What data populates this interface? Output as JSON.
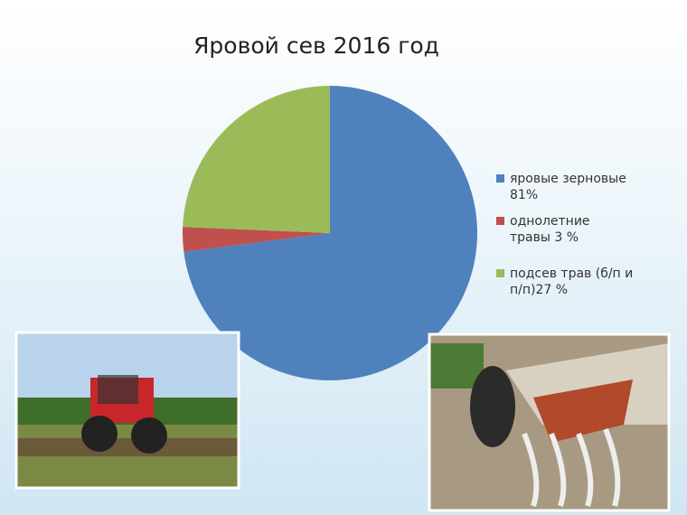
{
  "chart_data": {
    "type": "pie",
    "title": "Яровой сев 2016 год",
    "categories": [
      "яровые зерновые 81%",
      "однолетние травы 3 %",
      "подсев трав  (б/п и п/п)27 %"
    ],
    "values": [
      81,
      3,
      27
    ],
    "colors": [
      "#4f81bd",
      "#c0504d",
      "#9bbb59"
    ],
    "start_angle": 0,
    "direction": "clockwise"
  }
}
